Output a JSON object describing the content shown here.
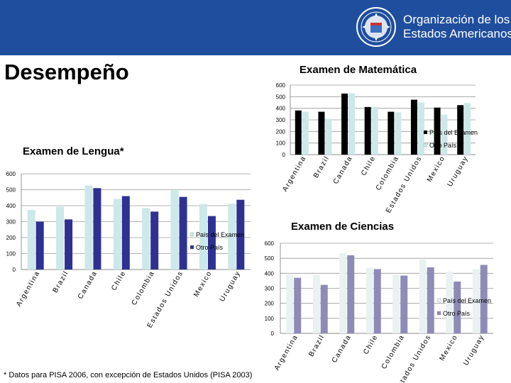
{
  "header": {
    "org_line1": "Organización de los",
    "org_line2": "Estados Americanos",
    "seal_icon": "oas-seal-icon",
    "background": "#1f4e9e"
  },
  "page_title": "Desempeño",
  "footnote": "* Datos para PISA 2006, con excepción de Estados Unidos (PISA 2003)",
  "chart_data": [
    {
      "type": "bar",
      "title": "Examen de Matemática",
      "categories": [
        "Argentina",
        "Brazil",
        "Canada",
        "Chile",
        "Colombia",
        "Estados Unidos",
        "Mexico",
        "Uruguay"
      ],
      "series": [
        {
          "name": "País del Examen",
          "color": "#000000",
          "values": [
            381,
            370,
            527,
            411,
            370,
            474,
            406,
            427
          ]
        },
        {
          "name": "Otro País",
          "color": "#cce8e8",
          "values": [
            370,
            310,
            530,
            411,
            365,
            450,
            345,
            445
          ]
        }
      ],
      "ylim": [
        0,
        600
      ],
      "yticks": [
        0,
        100,
        200,
        300,
        400,
        500,
        600
      ],
      "legend": "right"
    },
    {
      "type": "bar",
      "title": "Examen de Lengua*",
      "categories": [
        "Argentina",
        "Brazil",
        "Canada",
        "Chile",
        "Colombia",
        "Estados Unidos",
        "Mexico",
        "Uruguay"
      ],
      "series": [
        {
          "name": "País del Examen",
          "color": "#cce8e8",
          "values": [
            374,
            393,
            527,
            442,
            385,
            495,
            410,
            413
          ]
        },
        {
          "name": "Otro País",
          "color": "#2e3192",
          "values": [
            300,
            314,
            510,
            460,
            363,
            455,
            335,
            437
          ]
        }
      ],
      "ylim": [
        0,
        600
      ],
      "yticks": [
        0,
        100,
        200,
        300,
        400,
        500,
        600
      ],
      "legend": "right"
    },
    {
      "type": "bar",
      "title": "Examen de Ciencias",
      "categories": [
        "Argentina",
        "Brazil",
        "Canada",
        "Chile",
        "Colombia",
        "Estados Unidos",
        "Mexico",
        "Uruguay"
      ],
      "series": [
        {
          "name": "País del Examen",
          "color": "#e9f1f1",
          "values": [
            391,
            390,
            534,
            438,
            388,
            491,
            410,
            428
          ]
        },
        {
          "name": "Otro País",
          "color": "#8e8bb8",
          "values": [
            370,
            323,
            520,
            428,
            385,
            440,
            345,
            456
          ]
        }
      ],
      "ylim": [
        0,
        600
      ],
      "yticks": [
        0,
        100,
        200,
        300,
        400,
        500,
        600
      ],
      "legend": "right"
    }
  ]
}
